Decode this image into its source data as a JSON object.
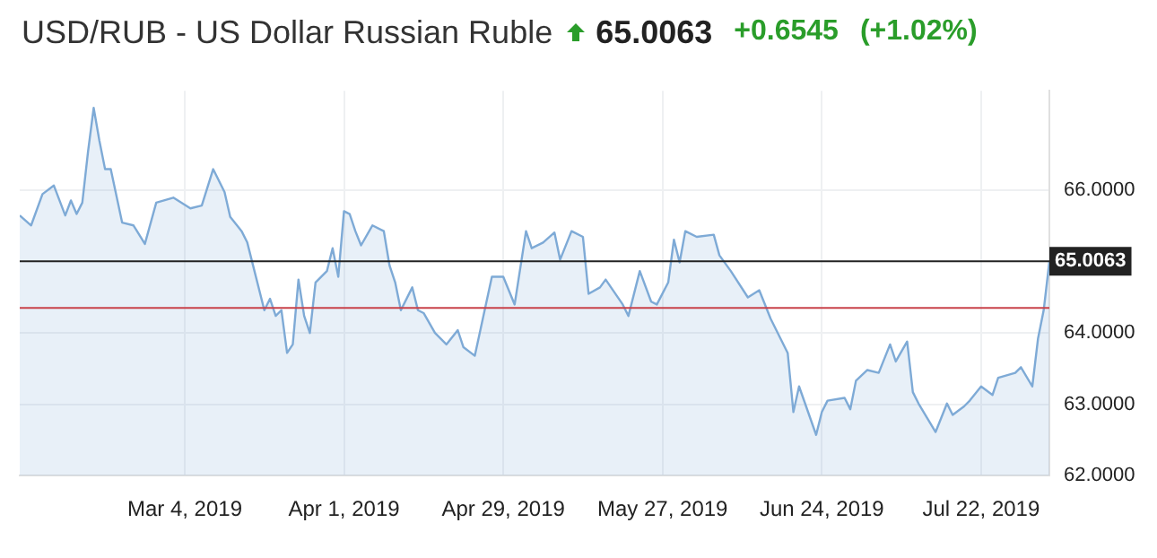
{
  "chart_data": {
    "type": "area",
    "title": "USD/RUB - US Dollar Russian Ruble",
    "subtitle": "65.0063",
    "annotations": [
      "+0.6545",
      "(+1.02%)"
    ],
    "x": [
      "2019-02-03",
      "2019-02-05",
      "2019-02-07",
      "2019-02-09",
      "2019-02-11",
      "2019-02-12",
      "2019-02-13",
      "2019-02-14",
      "2019-02-15",
      "2019-02-16",
      "2019-02-17",
      "2019-02-18",
      "2019-02-19",
      "2019-02-21",
      "2019-02-23",
      "2019-02-25",
      "2019-02-27",
      "2019-03-02",
      "2019-03-05",
      "2019-03-07",
      "2019-03-09",
      "2019-03-11",
      "2019-03-12",
      "2019-03-14",
      "2019-03-15",
      "2019-03-18",
      "2019-03-19",
      "2019-03-20",
      "2019-03-21",
      "2019-03-22",
      "2019-03-23",
      "2019-03-24",
      "2019-03-25",
      "2019-03-26",
      "2019-03-27",
      "2019-03-29",
      "2019-03-30",
      "2019-03-31",
      "2019-04-01",
      "2019-04-02",
      "2019-04-03",
      "2019-04-04",
      "2019-04-06",
      "2019-04-08",
      "2019-04-09",
      "2019-04-10",
      "2019-04-11",
      "2019-04-13",
      "2019-04-14",
      "2019-04-15",
      "2019-04-17",
      "2019-04-19",
      "2019-04-21",
      "2019-04-22",
      "2019-04-24",
      "2019-04-27",
      "2019-04-29",
      "2019-05-01",
      "2019-05-03",
      "2019-05-04",
      "2019-05-06",
      "2019-05-08",
      "2019-05-09",
      "2019-05-11",
      "2019-05-13",
      "2019-05-14",
      "2019-05-16",
      "2019-05-17",
      "2019-05-20",
      "2019-05-21",
      "2019-05-23",
      "2019-05-25",
      "2019-05-26",
      "2019-05-28",
      "2019-05-29",
      "2019-05-30",
      "2019-05-31",
      "2019-06-02",
      "2019-06-05",
      "2019-06-06",
      "2019-06-08",
      "2019-06-11",
      "2019-06-13",
      "2019-06-15",
      "2019-06-16",
      "2019-06-18",
      "2019-06-19",
      "2019-06-20",
      "2019-06-23",
      "2019-06-24",
      "2019-06-25",
      "2019-06-28",
      "2019-06-29",
      "2019-06-30",
      "2019-07-02",
      "2019-07-04",
      "2019-07-06",
      "2019-07-07",
      "2019-07-09",
      "2019-07-10",
      "2019-07-11",
      "2019-07-14",
      "2019-07-16",
      "2019-07-17",
      "2019-07-19",
      "2019-07-20",
      "2019-07-22",
      "2019-07-24",
      "2019-07-25",
      "2019-07-28",
      "2019-07-29",
      "2019-07-31",
      "2019-08-01",
      "2019-08-02",
      "2019-08-03"
    ],
    "values": [
      65.65,
      65.51,
      65.95,
      66.07,
      65.65,
      65.86,
      65.67,
      65.83,
      66.54,
      67.16,
      66.7,
      66.3,
      66.3,
      65.55,
      65.51,
      65.25,
      65.83,
      65.9,
      65.75,
      65.79,
      66.3,
      65.98,
      65.63,
      65.43,
      65.27,
      64.32,
      64.48,
      64.24,
      64.32,
      63.72,
      63.84,
      64.75,
      64.24,
      64.0,
      64.71,
      64.87,
      65.19,
      64.79,
      65.71,
      65.67,
      65.43,
      65.23,
      65.51,
      65.43,
      64.95,
      64.71,
      64.32,
      64.64,
      64.32,
      64.28,
      64.0,
      63.84,
      64.04,
      63.8,
      63.68,
      64.79,
      64.79,
      64.4,
      65.43,
      65.19,
      65.27,
      65.41,
      65.03,
      65.43,
      65.35,
      64.55,
      64.64,
      64.75,
      64.4,
      64.24,
      64.87,
      64.44,
      64.4,
      64.71,
      65.31,
      64.99,
      65.43,
      65.35,
      65.38,
      65.09,
      64.87,
      64.5,
      64.6,
      64.2,
      64.04,
      63.72,
      62.89,
      63.25,
      62.57,
      62.89,
      63.05,
      63.09,
      62.93,
      63.33,
      63.48,
      63.44,
      63.84,
      63.6,
      63.88,
      63.17,
      63.01,
      62.61,
      63.01,
      62.85,
      62.97,
      63.05,
      63.25,
      63.13,
      63.37,
      63.44,
      63.52,
      63.25,
      63.92,
      64.32,
      65.0063
    ],
    "color": "#7eaad6",
    "xlim": [
      "2019-02-03",
      "2019-08-03"
    ],
    "xticks": [
      {
        "value": "2019-03-04",
        "label": "Mar 4, 2019"
      },
      {
        "value": "2019-04-01",
        "label": "Apr 1, 2019"
      },
      {
        "value": "2019-04-29",
        "label": "Apr 29, 2019"
      },
      {
        "value": "2019-05-27",
        "label": "May 27, 2019"
      },
      {
        "value": "2019-06-24",
        "label": "Jun 24, 2019"
      },
      {
        "value": "2019-07-22",
        "label": "Jul 22, 2019"
      }
    ],
    "ylim": [
      62,
      67.4
    ],
    "yticks": [
      {
        "value": 62,
        "label": "62.0000"
      },
      {
        "value": 63,
        "label": "63.0000"
      },
      {
        "value": 64,
        "label": "64.0000"
      },
      {
        "value": 66,
        "label": "66.0000"
      }
    ],
    "ref_lines": [
      {
        "axis": "y",
        "value": 65.0063,
        "label": "65.0063",
        "color": "#222222"
      },
      {
        "axis": "y",
        "value": 64.3518,
        "color": "#c8424a"
      }
    ],
    "grid": true,
    "legend": false
  }
}
